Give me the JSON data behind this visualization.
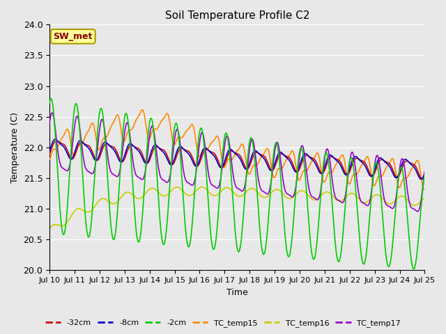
{
  "title": "Soil Temperature Profile C2",
  "xlabel": "Time",
  "ylabel": "Temperature (C)",
  "ylim": [
    20.0,
    24.0
  ],
  "yticks": [
    20.0,
    20.5,
    21.0,
    21.5,
    22.0,
    22.5,
    23.0,
    23.5,
    24.0
  ],
  "bg_color": "#e8e8e8",
  "plot_bg_color": "#e8e8e8",
  "grid_color": "#ffffff",
  "annotation_text": "SW_met",
  "annotation_bg": "#ffff99",
  "annotation_border": "#aa9900",
  "annotation_text_color": "#880000",
  "series": {
    "neg32cm": {
      "color": "#cc0000",
      "label": "-32cm",
      "lw": 1.2
    },
    "neg8cm": {
      "color": "#0000cc",
      "label": "-8cm",
      "lw": 1.2
    },
    "neg2cm": {
      "color": "#00cc00",
      "label": "-2cm",
      "lw": 1.2
    },
    "TC_temp15": {
      "color": "#ff8800",
      "label": "TC_temp15",
      "lw": 1.2
    },
    "TC_temp16": {
      "color": "#cccc00",
      "label": "TC_temp16",
      "lw": 1.2
    },
    "TC_temp17": {
      "color": "#9900cc",
      "label": "TC_temp17",
      "lw": 1.2
    }
  },
  "xtick_labels": [
    "Jul 10",
    "Jul 11",
    "Jul 12",
    "Jul 13",
    "Jul 14",
    "Jul 15",
    "Jul 16",
    "Jul 17",
    "Jul 18",
    "Jul 19",
    "Jul 20",
    "Jul 21",
    "Jul 22",
    "Jul 23",
    "Jul 24",
    "Jul 25"
  ],
  "xtick_positions": [
    0,
    24,
    48,
    72,
    96,
    120,
    144,
    168,
    192,
    216,
    240,
    264,
    288,
    312,
    336,
    360
  ]
}
